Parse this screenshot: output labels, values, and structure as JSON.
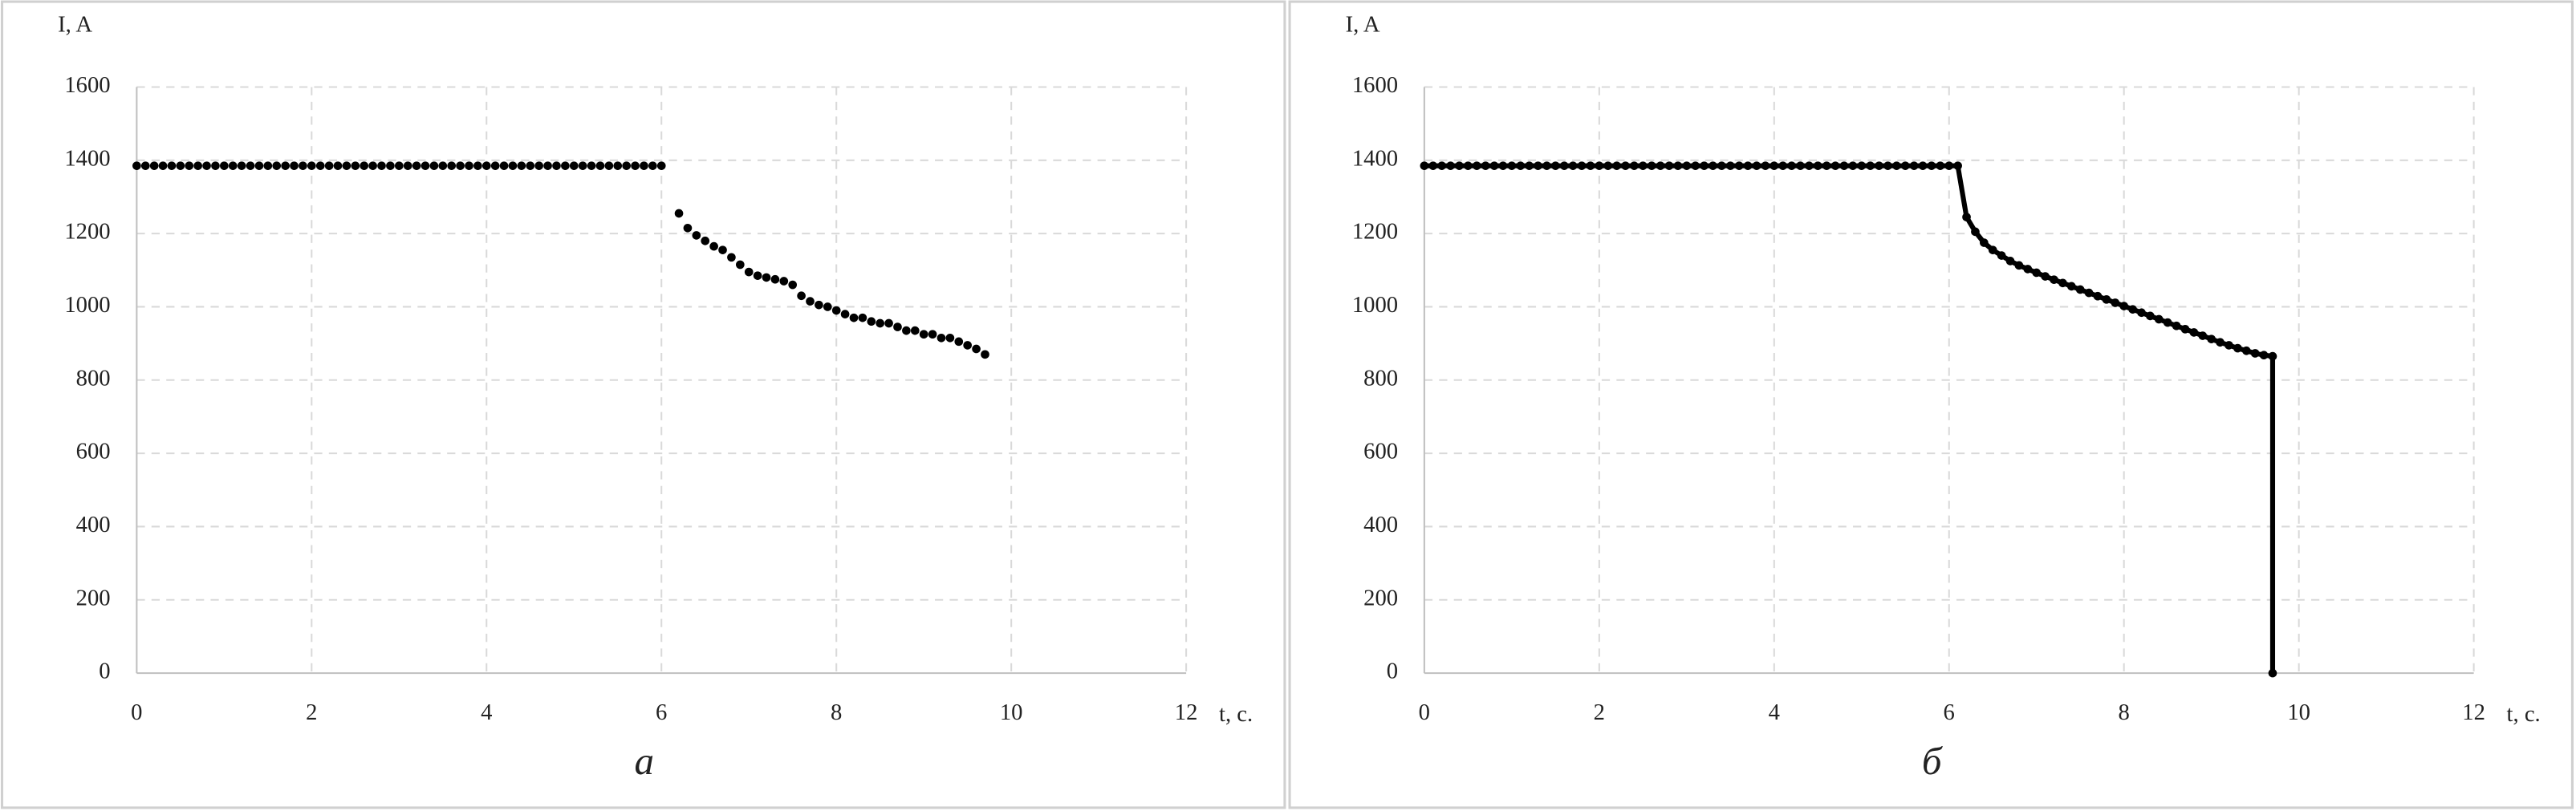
{
  "chart_data": [
    {
      "type": "scatter",
      "caption": "а",
      "xlabel": "t, c.",
      "ylabel": "I, A",
      "color": "#000000",
      "line": false,
      "grid": true,
      "xlim": [
        0,
        12
      ],
      "ylim": [
        0,
        1600
      ],
      "xticks": [
        0,
        2,
        4,
        6,
        8,
        10,
        12
      ],
      "yticks": [
        0,
        200,
        400,
        600,
        800,
        1000,
        1200,
        1400,
        1600
      ],
      "x": [
        0,
        0.1,
        0.2,
        0.3,
        0.4,
        0.5,
        0.6,
        0.7,
        0.8,
        0.9,
        1,
        1.1,
        1.2,
        1.3,
        1.4,
        1.5,
        1.6,
        1.7,
        1.8,
        1.9,
        2,
        2.1,
        2.2,
        2.3,
        2.4,
        2.5,
        2.6,
        2.7,
        2.8,
        2.9,
        3,
        3.1,
        3.2,
        3.3,
        3.4,
        3.5,
        3.6,
        3.7,
        3.8,
        3.9,
        4,
        4.1,
        4.2,
        4.3,
        4.4,
        4.5,
        4.6,
        4.7,
        4.8,
        4.9,
        5,
        5.1,
        5.2,
        5.3,
        5.4,
        5.5,
        5.6,
        5.7,
        5.8,
        5.9,
        6,
        6.2,
        6.3,
        6.4,
        6.5,
        6.6,
        6.7,
        6.8,
        6.9,
        7,
        7.1,
        7.2,
        7.3,
        7.4,
        7.5,
        7.6,
        7.7,
        7.8,
        7.9,
        8,
        8.1,
        8.2,
        8.3,
        8.4,
        8.5,
        8.6,
        8.7,
        8.8,
        8.9,
        9,
        9.1,
        9.2,
        9.3,
        9.4,
        9.5,
        9.6,
        9.7
      ],
      "values": [
        1385,
        1385,
        1385,
        1385,
        1385,
        1385,
        1385,
        1385,
        1385,
        1385,
        1385,
        1385,
        1385,
        1385,
        1385,
        1385,
        1385,
        1385,
        1385,
        1385,
        1385,
        1385,
        1385,
        1385,
        1385,
        1385,
        1385,
        1385,
        1385,
        1385,
        1385,
        1385,
        1385,
        1385,
        1385,
        1385,
        1385,
        1385,
        1385,
        1385,
        1385,
        1385,
        1385,
        1385,
        1385,
        1385,
        1385,
        1385,
        1385,
        1385,
        1385,
        1385,
        1385,
        1385,
        1385,
        1385,
        1385,
        1385,
        1385,
        1385,
        1385,
        1255,
        1215,
        1195,
        1180,
        1165,
        1155,
        1135,
        1115,
        1095,
        1085,
        1080,
        1075,
        1070,
        1060,
        1030,
        1015,
        1005,
        1000,
        990,
        980,
        970,
        970,
        960,
        955,
        955,
        945,
        935,
        935,
        925,
        925,
        915,
        915,
        905,
        895,
        885,
        870
      ]
    },
    {
      "type": "scatter",
      "caption": "б",
      "xlabel": "t, c.",
      "ylabel": "I, A",
      "color": "#000000",
      "line": true,
      "grid": true,
      "xlim": [
        0,
        12
      ],
      "ylim": [
        0,
        1600
      ],
      "xticks": [
        0,
        2,
        4,
        6,
        8,
        10,
        12
      ],
      "yticks": [
        0,
        200,
        400,
        600,
        800,
        1000,
        1200,
        1400,
        1600
      ],
      "x": [
        0,
        0.1,
        0.2,
        0.3,
        0.4,
        0.5,
        0.6,
        0.7,
        0.8,
        0.9,
        1,
        1.1,
        1.2,
        1.3,
        1.4,
        1.5,
        1.6,
        1.7,
        1.8,
        1.9,
        2,
        2.1,
        2.2,
        2.3,
        2.4,
        2.5,
        2.6,
        2.7,
        2.8,
        2.9,
        3,
        3.1,
        3.2,
        3.3,
        3.4,
        3.5,
        3.6,
        3.7,
        3.8,
        3.9,
        4,
        4.1,
        4.2,
        4.3,
        4.4,
        4.5,
        4.6,
        4.7,
        4.8,
        4.9,
        5,
        5.1,
        5.2,
        5.3,
        5.4,
        5.5,
        5.6,
        5.7,
        5.8,
        5.9,
        6,
        6.1,
        6.2,
        6.3,
        6.4,
        6.5,
        6.6,
        6.7,
        6.8,
        6.9,
        7,
        7.1,
        7.2,
        7.3,
        7.4,
        7.5,
        7.6,
        7.7,
        7.8,
        7.9,
        8,
        8.1,
        8.2,
        8.3,
        8.4,
        8.5,
        8.6,
        8.7,
        8.8,
        8.9,
        9,
        9.1,
        9.2,
        9.3,
        9.4,
        9.5,
        9.6,
        9.7,
        9.7
      ],
      "values": [
        1385,
        1385,
        1385,
        1385,
        1385,
        1385,
        1385,
        1385,
        1385,
        1385,
        1385,
        1385,
        1385,
        1385,
        1385,
        1385,
        1385,
        1385,
        1385,
        1385,
        1385,
        1385,
        1385,
        1385,
        1385,
        1385,
        1385,
        1385,
        1385,
        1385,
        1385,
        1385,
        1385,
        1385,
        1385,
        1385,
        1385,
        1385,
        1385,
        1385,
        1385,
        1385,
        1385,
        1385,
        1385,
        1385,
        1385,
        1385,
        1385,
        1385,
        1385,
        1385,
        1385,
        1385,
        1385,
        1385,
        1385,
        1385,
        1385,
        1385,
        1385,
        1385,
        1245,
        1205,
        1175,
        1155,
        1140,
        1125,
        1113,
        1103,
        1093,
        1083,
        1074,
        1065,
        1056,
        1047,
        1038,
        1029,
        1020,
        1011,
        1002,
        993,
        984,
        975,
        966,
        957,
        948,
        939,
        930,
        921,
        912,
        903,
        895,
        887,
        880,
        873,
        868,
        865,
        0
      ]
    }
  ]
}
